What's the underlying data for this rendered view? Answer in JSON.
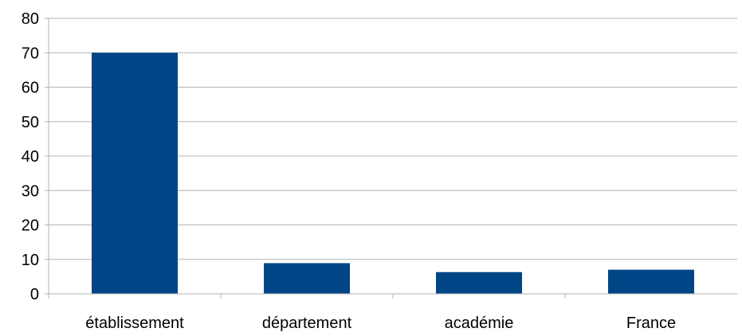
{
  "chart_data": {
    "type": "bar",
    "title": "",
    "xlabel": "",
    "ylabel": "",
    "categories": [
      "établissement",
      "département",
      "académie",
      "France"
    ],
    "series": [
      {
        "values": [
          70,
          8.9,
          6.3,
          7
        ]
      }
    ],
    "ylim": [
      0,
      80
    ],
    "yticks": [
      "0",
      "10",
      "20",
      "30",
      "40",
      "50",
      "60",
      "70",
      "80"
    ],
    "grid": true,
    "legend": "none",
    "colors": {
      "bar": "#004586",
      "grid": "#b3b3b3",
      "axis": "#b3b3b3",
      "text": "#000000"
    }
  }
}
